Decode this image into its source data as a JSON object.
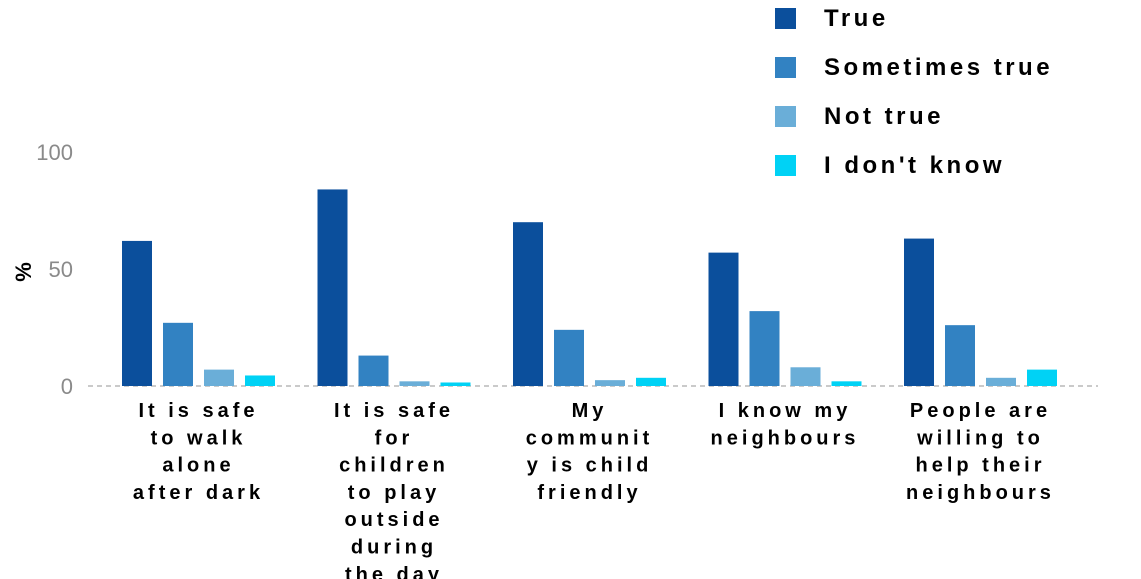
{
  "chart_data": {
    "type": "bar",
    "title": "",
    "xlabel": "",
    "ylabel": "%",
    "ylim": [
      0,
      100
    ],
    "yticks": [
      0,
      50,
      100
    ],
    "legend_position": "top-right",
    "categories": [
      [
        "It is safe",
        "to walk",
        "alone",
        "after dark"
      ],
      [
        "It is safe",
        "for",
        "children",
        "to play",
        "outside",
        "during",
        "the day"
      ],
      [
        "My",
        "communit",
        "y is child",
        "friendly"
      ],
      [
        "I know my",
        "neighbours"
      ],
      [
        "People are",
        "willing to",
        "help their",
        "neighbours"
      ]
    ],
    "series": [
      {
        "name": "True",
        "color": "#0b4f9c",
        "values": [
          62,
          84,
          70,
          57,
          63
        ]
      },
      {
        "name": "Sometimes true",
        "color": "#3282c2",
        "values": [
          27,
          13,
          24,
          32,
          26
        ]
      },
      {
        "name": "Not true",
        "color": "#6aaed8",
        "values": [
          7,
          2,
          2.5,
          8,
          3.5
        ]
      },
      {
        "name": "I don't know",
        "color": "#00d2f5",
        "values": [
          4.5,
          1.5,
          3.5,
          2,
          7
        ]
      }
    ]
  }
}
